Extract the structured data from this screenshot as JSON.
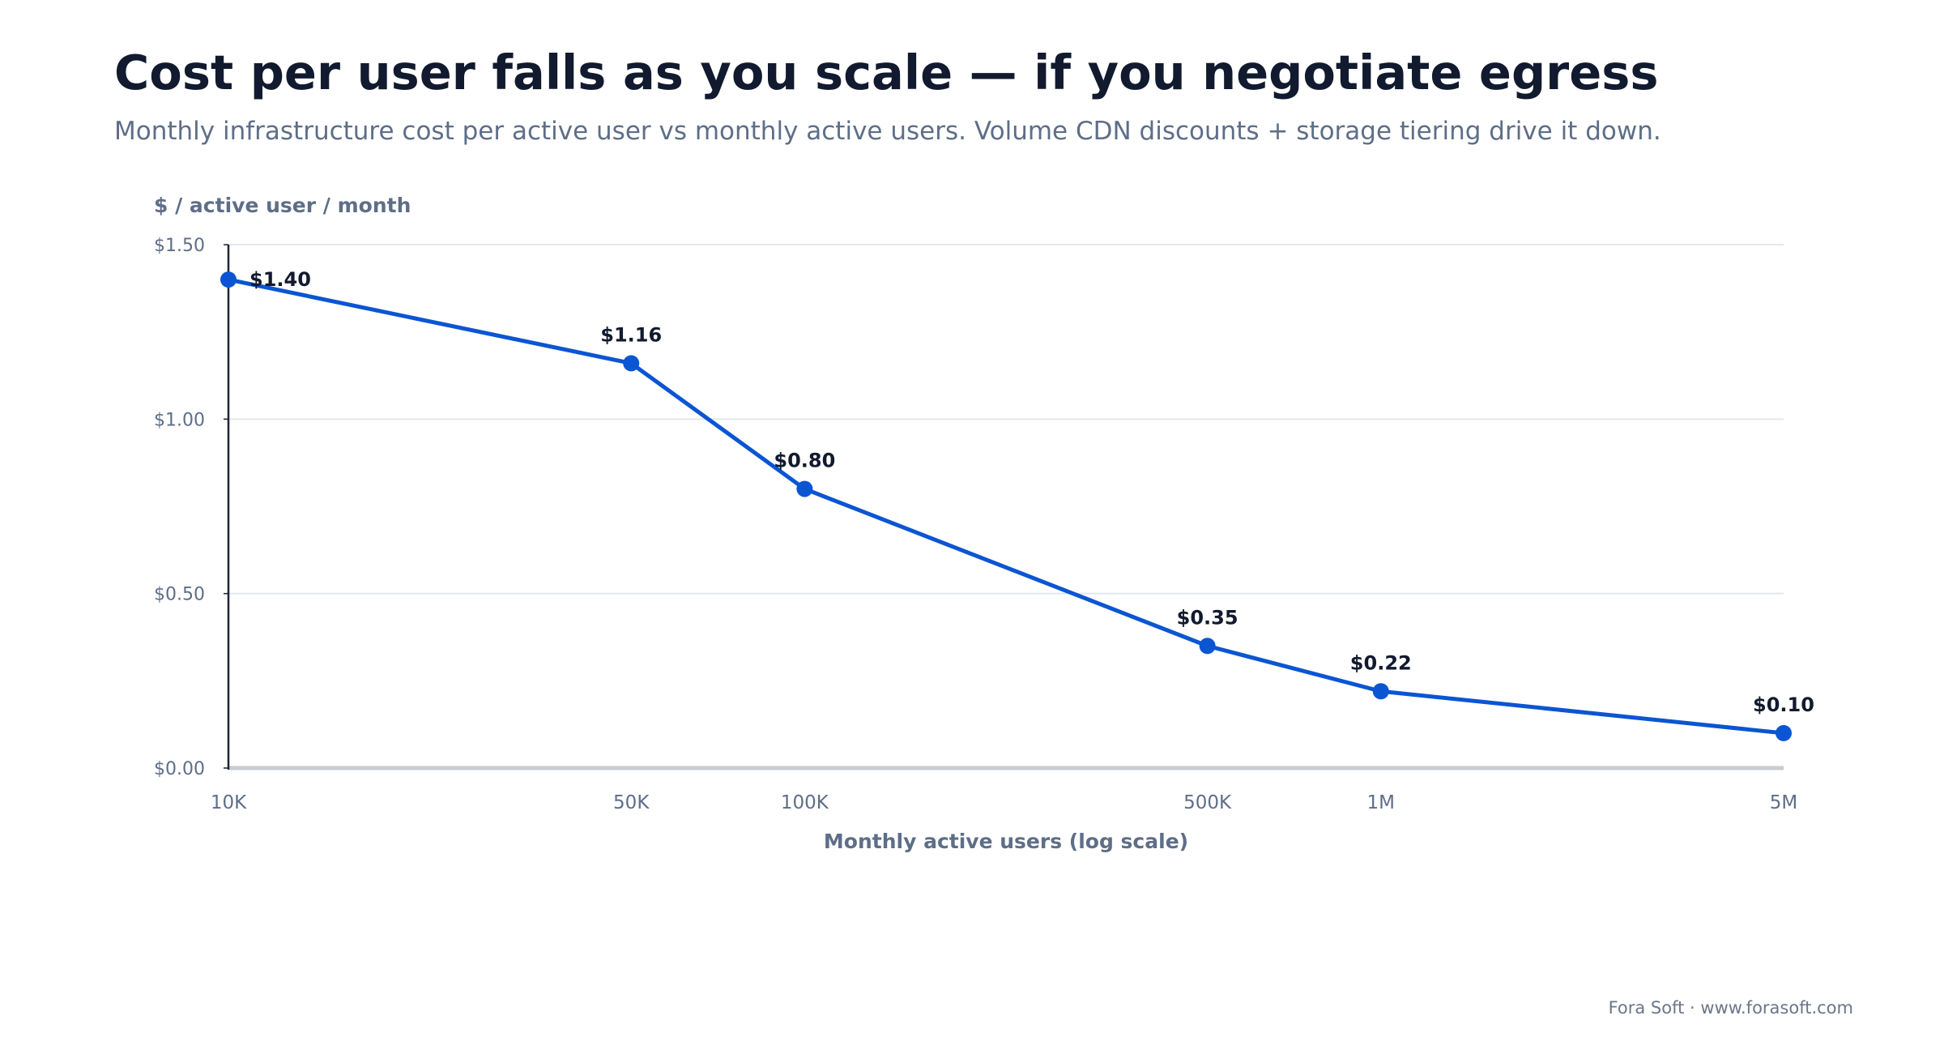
{
  "header": {
    "title": "Cost per user falls as you scale — if you negotiate egress",
    "subtitle": "Monthly infrastructure cost per active user vs monthly active users. Volume CDN discounts + storage tiering drive it down."
  },
  "footer": {
    "credit": "Fora Soft · www.forasoft.com"
  },
  "chart_data": {
    "type": "line",
    "x_scale": "log",
    "x": [
      10000,
      50000,
      100000,
      500000,
      1000000,
      5000000
    ],
    "x_tick_labels": [
      "10K",
      "50K",
      "100K",
      "500K",
      "1M",
      "5M"
    ],
    "series": [
      {
        "values": [
          1.4,
          1.16,
          0.8,
          0.35,
          0.22,
          0.1
        ],
        "labels": [
          "$1.40",
          "$1.16",
          "$0.80",
          "$0.35",
          "$0.22",
          "$0.10"
        ]
      }
    ],
    "xlabel": "Monthly active users (log scale)",
    "ylabel": "$ / active user / month",
    "ylim": [
      0,
      1.5
    ],
    "y_ticks": [
      0,
      0.5,
      1.0,
      1.5
    ],
    "y_tick_labels": [
      "$0.00",
      "$0.50",
      "$1.00",
      "$1.50"
    ],
    "grid": "horizontal",
    "colors": {
      "line": "#0b55d2",
      "point_label": "#111a2e",
      "axis_text": "#5e6e88",
      "grid": "#e3e7ee",
      "y_axis": "#1c2533",
      "x_axis": "#c8cbd0"
    }
  }
}
